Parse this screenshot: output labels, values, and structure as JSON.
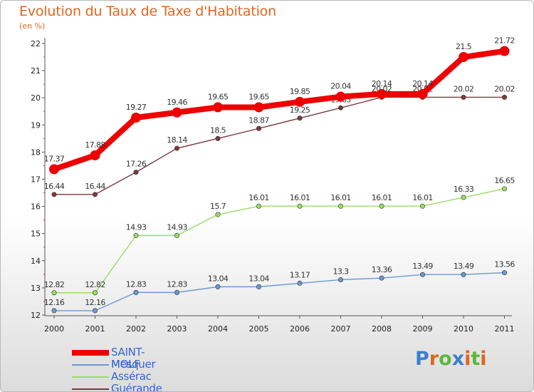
{
  "header": {
    "title": "Evolution du Taux de Taxe d'Habitation",
    "subtitle": "(en %)"
  },
  "logo": {
    "text": "Proxiti",
    "letter_colors": [
      "#3b7fd0",
      "#e0661d",
      "#5cb83a",
      "#3b7fd0",
      "#e0661d",
      "#5cb83a",
      "#e0661d"
    ]
  },
  "chart_data": {
    "type": "line",
    "title": "Evolution du Taux de Taxe d'Habitation",
    "subtitle": "(en %)",
    "xlabel": "",
    "ylabel": "",
    "ylim": [
      12,
      22
    ],
    "yticks": [
      12,
      13,
      14,
      15,
      16,
      17,
      18,
      19,
      20,
      21,
      22
    ],
    "grid": false,
    "legend_position": "bottom-left",
    "x": [
      "2000",
      "2001",
      "2002",
      "2003",
      "2004",
      "2005",
      "2006",
      "2007",
      "2008",
      "2009",
      "2010",
      "2011"
    ],
    "series": [
      {
        "name": "SAINT-MOLF",
        "color": "#ee0000",
        "legend_color": "#3366cc",
        "emphasis": "thick",
        "values": [
          17.37,
          17.88,
          19.27,
          19.46,
          19.65,
          19.65,
          19.85,
          20.04,
          20.14,
          20.14,
          21.5,
          21.72
        ],
        "labels": [
          "17.37",
          "17.88",
          "19.27",
          "19.46",
          "19.65",
          "19.65",
          "19.85",
          "20.04",
          "20.14",
          "20.14",
          "21.5",
          "21.72"
        ]
      },
      {
        "name": "Mesquer",
        "color": "#6a9ad0",
        "legend_color": "#3366cc",
        "emphasis": "thin",
        "values": [
          12.16,
          12.16,
          12.83,
          12.83,
          13.04,
          13.04,
          13.17,
          13.3,
          13.36,
          13.49,
          13.49,
          13.56
        ],
        "labels": [
          "12.16",
          "12.16",
          "12.83",
          "12.83",
          "13.04",
          "13.04",
          "13.17",
          "13.3",
          "13.36",
          "13.49",
          "13.49",
          "13.56"
        ]
      },
      {
        "name": "Assérac",
        "color": "#99dd66",
        "legend_color": "#3366cc",
        "emphasis": "thin",
        "values": [
          12.82,
          12.82,
          14.93,
          14.93,
          15.7,
          16.01,
          16.01,
          16.01,
          16.01,
          16.01,
          16.33,
          16.65
        ],
        "labels": [
          "12.82",
          "12.82",
          "14.93",
          "14.93",
          "15.7",
          "16.01",
          "16.01",
          "16.01",
          "16.01",
          "16.01",
          "16.33",
          "16.65"
        ]
      },
      {
        "name": "Guérande",
        "color": "#7a3a3a",
        "legend_color": "#3366cc",
        "emphasis": "thin",
        "values": [
          16.44,
          16.44,
          17.26,
          18.14,
          18.5,
          18.87,
          19.25,
          19.63,
          20.02,
          20.02,
          20.02,
          20.02
        ],
        "labels": [
          "16.44",
          "16.44",
          "17.26",
          "18.14",
          "18.5",
          "18.87",
          "19.25",
          "19.63",
          "20.02",
          "20.02",
          "20.02",
          "20.02"
        ]
      }
    ]
  }
}
